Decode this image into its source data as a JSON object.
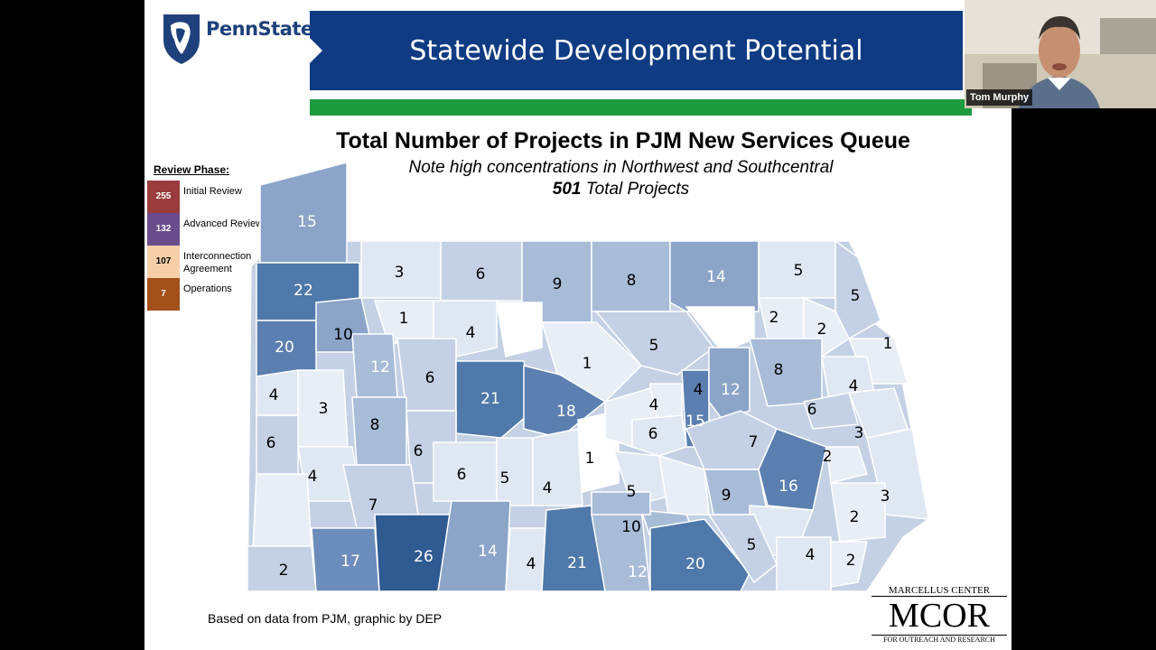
{
  "slide": {
    "logo_text": "PennState",
    "banner_title": "Statewide Development Potential",
    "chart_title": "Total Number of Projects in PJM New Services Queue",
    "subtitle": "Note high concentrations in Northwest and Southcentral",
    "total_number": "501",
    "total_label": " Total Projects",
    "footer": "Based on data from PJM, graphic by DEP",
    "mcor_top": "MARCELLUS CENTER",
    "mcor_main": "MCOR",
    "mcor_bottom": "FOR OUTREACH AND RESEARCH"
  },
  "legend": {
    "title": "Review Phase:",
    "items": [
      {
        "count": "255",
        "label": "Initial Review",
        "color": "#9a3b3d"
      },
      {
        "count": "132",
        "label": "Advanced Review",
        "color": "#6a4c8c"
      },
      {
        "count": "107",
        "label": "Interconnection Agreement",
        "color": "#f6cfa9"
      },
      {
        "count": "7",
        "label": "Operations",
        "color": "#a3501a"
      }
    ]
  },
  "map": {
    "counties": [
      "15",
      "22",
      "3",
      "6",
      "9",
      "8",
      "14",
      "5",
      "5",
      "20",
      "10",
      "1",
      "4",
      "2",
      "2",
      "1",
      "12",
      "6",
      "21",
      "1",
      "5",
      "8",
      "4",
      "3",
      "18",
      "4",
      "4",
      "12",
      "4",
      "6",
      "8",
      "6",
      "15",
      "6",
      "6",
      "7",
      "3",
      "4",
      "1",
      "2",
      "3",
      "6",
      "5",
      "4",
      "5",
      "9",
      "16",
      "2",
      "2",
      "7",
      "17",
      "26",
      "14",
      "4",
      "10",
      "21",
      "12",
      "20",
      "5",
      "4",
      "2"
    ],
    "colors": {
      "c1": "#dfe7f2",
      "c2": "#b7c7de",
      "c3": "#8ba4c8",
      "c4": "#5b7fb0",
      "c5": "#3b6298"
    }
  },
  "webcam": {
    "name": "Tom Murphy"
  }
}
